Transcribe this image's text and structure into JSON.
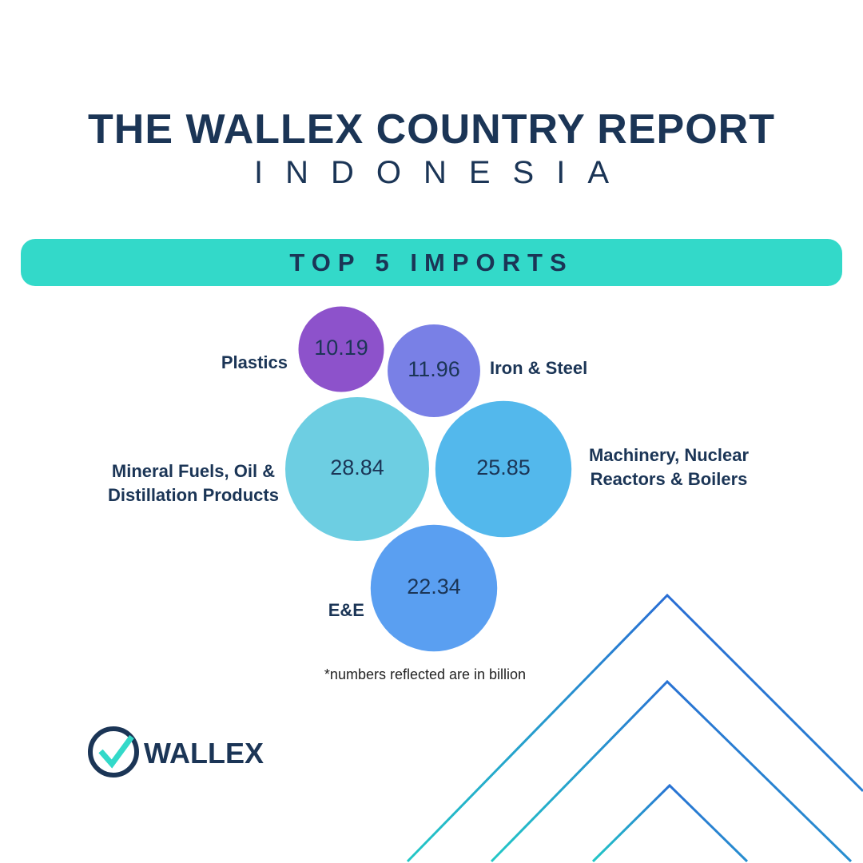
{
  "chart_data": {
    "type": "bubble",
    "title": "THE WALLEX COUNTRY REPORT",
    "subtitle": "INDONESIA",
    "section_title": "TOP 5 IMPORTS",
    "categories": [
      "Plastics",
      "Iron & Steel",
      "Mineral Fuels, Oil & Distillation Products",
      "Machinery, Nuclear Reactors & Boilers",
      "E&E"
    ],
    "values": [
      10.19,
      11.96,
      28.84,
      25.85,
      22.34
    ],
    "colors": [
      "#8d52cb",
      "#7980e6",
      "#6dcee2",
      "#53b8ec",
      "#5a9ff1"
    ],
    "note": "*numbers reflected are in billion"
  },
  "brand": "WALLEX"
}
